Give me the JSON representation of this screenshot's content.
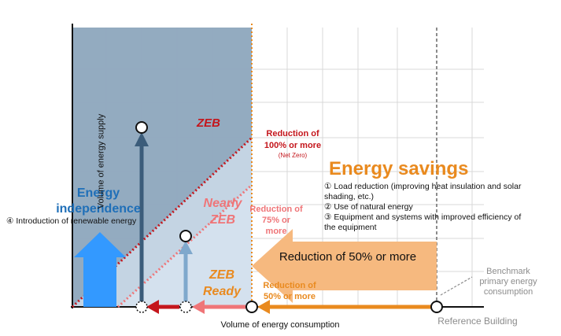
{
  "axes": {
    "y_label": "Volume of energy supply",
    "x_label": "Volume of energy consumption"
  },
  "zones": {
    "zeb": "ZEB",
    "nearly_zeb": "Nearly\nZEB",
    "zeb_ready": "ZEB\nReady"
  },
  "reductions": {
    "r100_line1": "Reduction of",
    "r100_line2": "100% or more",
    "r100_note": "(Net Zero)",
    "r75": "Reduction of\n75% or\nmore",
    "r50": "Reduction of\n50% or more"
  },
  "energy_independence": {
    "title": "Energy\nindependence",
    "item4": "④ Introduction of renewable energy"
  },
  "energy_savings": {
    "title": "Energy savings",
    "item1": "① Load reduction (improving heat insulation and solar\nshading, etc.)",
    "item2": "② Use of natural energy",
    "item3": "③ Equipment and systems with improved efficiency of\nthe equipment",
    "arrow_label": "Reduction of 50% or more"
  },
  "benchmark": {
    "label": "Benchmark\nprimary energy\nconsumption",
    "reference": "Reference Building"
  },
  "colors": {
    "dark_region": "#8ea6bd",
    "mid_region": "#c2d2e2",
    "light_region": "#e3ecf4",
    "zeb_red": "#c4161c",
    "nearly_pink": "#ef7578",
    "orange": "#e98a1f",
    "orange_light": "#f6b97f",
    "blue_title": "#1f6fb8",
    "blue_arrow": "#3399ff",
    "dark_blue_arrow": "#3b5c7a",
    "light_blue_arrow": "#7fa8cc"
  }
}
